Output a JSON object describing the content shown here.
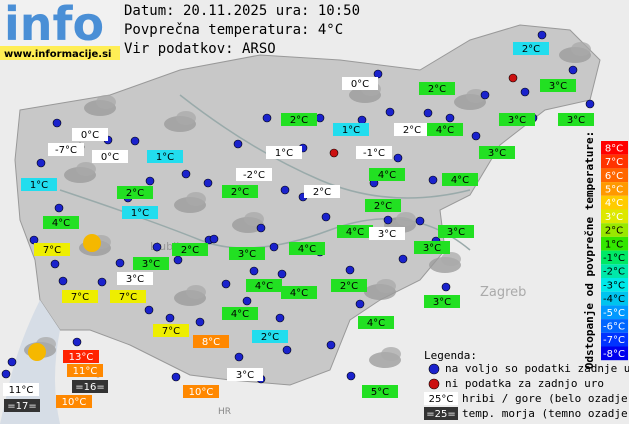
{
  "header": {
    "logo": "info",
    "website": "www.informacije.si",
    "date_line": "Datum: 20.11.2025 ura: 10:50",
    "avg_temp_line": "Povprečna temperatura: 4°C",
    "source_line": "Vir podatkov: ARSO"
  },
  "places": [
    "Ljubljana",
    "Zagreb",
    "HR"
  ],
  "stations": [
    {
      "label": "2°C",
      "bg": "cyan"
    },
    {
      "label": "0°C",
      "bg": "white"
    },
    {
      "label": "2°C",
      "bg": "green"
    },
    {
      "label": "3°C",
      "bg": "green"
    },
    {
      "label": "2°C",
      "bg": "green"
    },
    {
      "label": "1°C",
      "bg": "cyan"
    },
    {
      "label": "2°C",
      "bg": "white"
    },
    {
      "label": "4°C",
      "bg": "green"
    },
    {
      "label": "3°C",
      "bg": "green"
    },
    {
      "label": "3°C",
      "bg": "green"
    },
    {
      "label": "0°C",
      "bg": "white"
    },
    {
      "label": "-7°C",
      "bg": "white"
    },
    {
      "label": "0°C",
      "bg": "white"
    },
    {
      "label": "1°C",
      "bg": "cyan"
    },
    {
      "label": "1°C",
      "bg": "white"
    },
    {
      "label": "-1°C",
      "bg": "white"
    },
    {
      "label": "3°C",
      "bg": "green"
    },
    {
      "label": "1°C",
      "bg": "cyan"
    },
    {
      "label": "2°C",
      "bg": "green"
    },
    {
      "label": "-2°C",
      "bg": "white"
    },
    {
      "label": "4°C",
      "bg": "green"
    },
    {
      "label": "2°C",
      "bg": "green"
    },
    {
      "label": "2°C",
      "bg": "white"
    },
    {
      "label": "4°C",
      "bg": "green"
    },
    {
      "label": "2°C",
      "bg": "green"
    },
    {
      "label": "1°C",
      "bg": "cyan"
    },
    {
      "label": "4°C",
      "bg": "green"
    },
    {
      "label": "4°C",
      "bg": "green"
    },
    {
      "label": "3°C",
      "bg": "white"
    },
    {
      "label": "3°C",
      "bg": "green"
    },
    {
      "label": "7°C",
      "bg": "yellow"
    },
    {
      "label": "2°C",
      "bg": "green"
    },
    {
      "label": "3°C",
      "bg": "green"
    },
    {
      "label": "4°C",
      "bg": "green"
    },
    {
      "label": "3°C",
      "bg": "green"
    },
    {
      "label": "3°C",
      "bg": "green"
    },
    {
      "label": "3°C",
      "bg": "white"
    },
    {
      "label": "4°C",
      "bg": "green"
    },
    {
      "label": "2°C",
      "bg": "green"
    },
    {
      "label": "4°C",
      "bg": "green"
    },
    {
      "label": "7°C",
      "bg": "yellow"
    },
    {
      "label": "7°C",
      "bg": "yellow"
    },
    {
      "label": "3°C",
      "bg": "green"
    },
    {
      "label": "4°C",
      "bg": "green"
    },
    {
      "label": "4°C",
      "bg": "green"
    },
    {
      "label": "7°C",
      "bg": "yellow"
    },
    {
      "label": "2°C",
      "bg": "cyan"
    },
    {
      "label": "8°C",
      "bg": "orange"
    },
    {
      "label": "13°C",
      "bg": "red"
    },
    {
      "label": "11°C",
      "bg": "orange"
    },
    {
      "label": "=16=",
      "bg": "dark"
    },
    {
      "label": "11°C",
      "bg": "white"
    },
    {
      "label": "3°C",
      "bg": "white"
    },
    {
      "label": "10°C",
      "bg": "orange"
    },
    {
      "label": "5°C",
      "bg": "green"
    },
    {
      "label": "10°C",
      "bg": "orange"
    },
    {
      "label": "=17=",
      "bg": "dark"
    }
  ],
  "scale": {
    "title": "Odstopanje od povprečne temperature:",
    "steps": [
      {
        "label": "8°C",
        "color": "#ff0000"
      },
      {
        "label": "7°C",
        "color": "#ff3300"
      },
      {
        "label": "6°C",
        "color": "#ff6600"
      },
      {
        "label": "5°C",
        "color": "#ff9900"
      },
      {
        "label": "4°C",
        "color": "#ffcc00"
      },
      {
        "label": "3°C",
        "color": "#dde800"
      },
      {
        "label": "2°C",
        "color": "#99e800"
      },
      {
        "label": "1°C",
        "color": "#33e600"
      },
      {
        "label": "-1°C",
        "color": "#00e866"
      },
      {
        "label": "-2°C",
        "color": "#00e8aa"
      },
      {
        "label": "-3°C",
        "color": "#00e8e8"
      },
      {
        "label": "-4°C",
        "color": "#00c4ee"
      },
      {
        "label": "-5°C",
        "color": "#0099ff"
      },
      {
        "label": "-6°C",
        "color": "#0066ff"
      },
      {
        "label": "-7°C",
        "color": "#0033ff"
      },
      {
        "label": "-8°C",
        "color": "#0000ee"
      }
    ]
  },
  "legend": {
    "title": "Legenda:",
    "available": "na voljo so podatki zadnje ure",
    "missing": "ni podatka za zadnjo uro",
    "hill_sample": "25°C",
    "hill_text": "hribi / gore (belo ozadje)",
    "sea_sample": "=25=",
    "sea_text": "temp. morja (temno ozadje)"
  }
}
